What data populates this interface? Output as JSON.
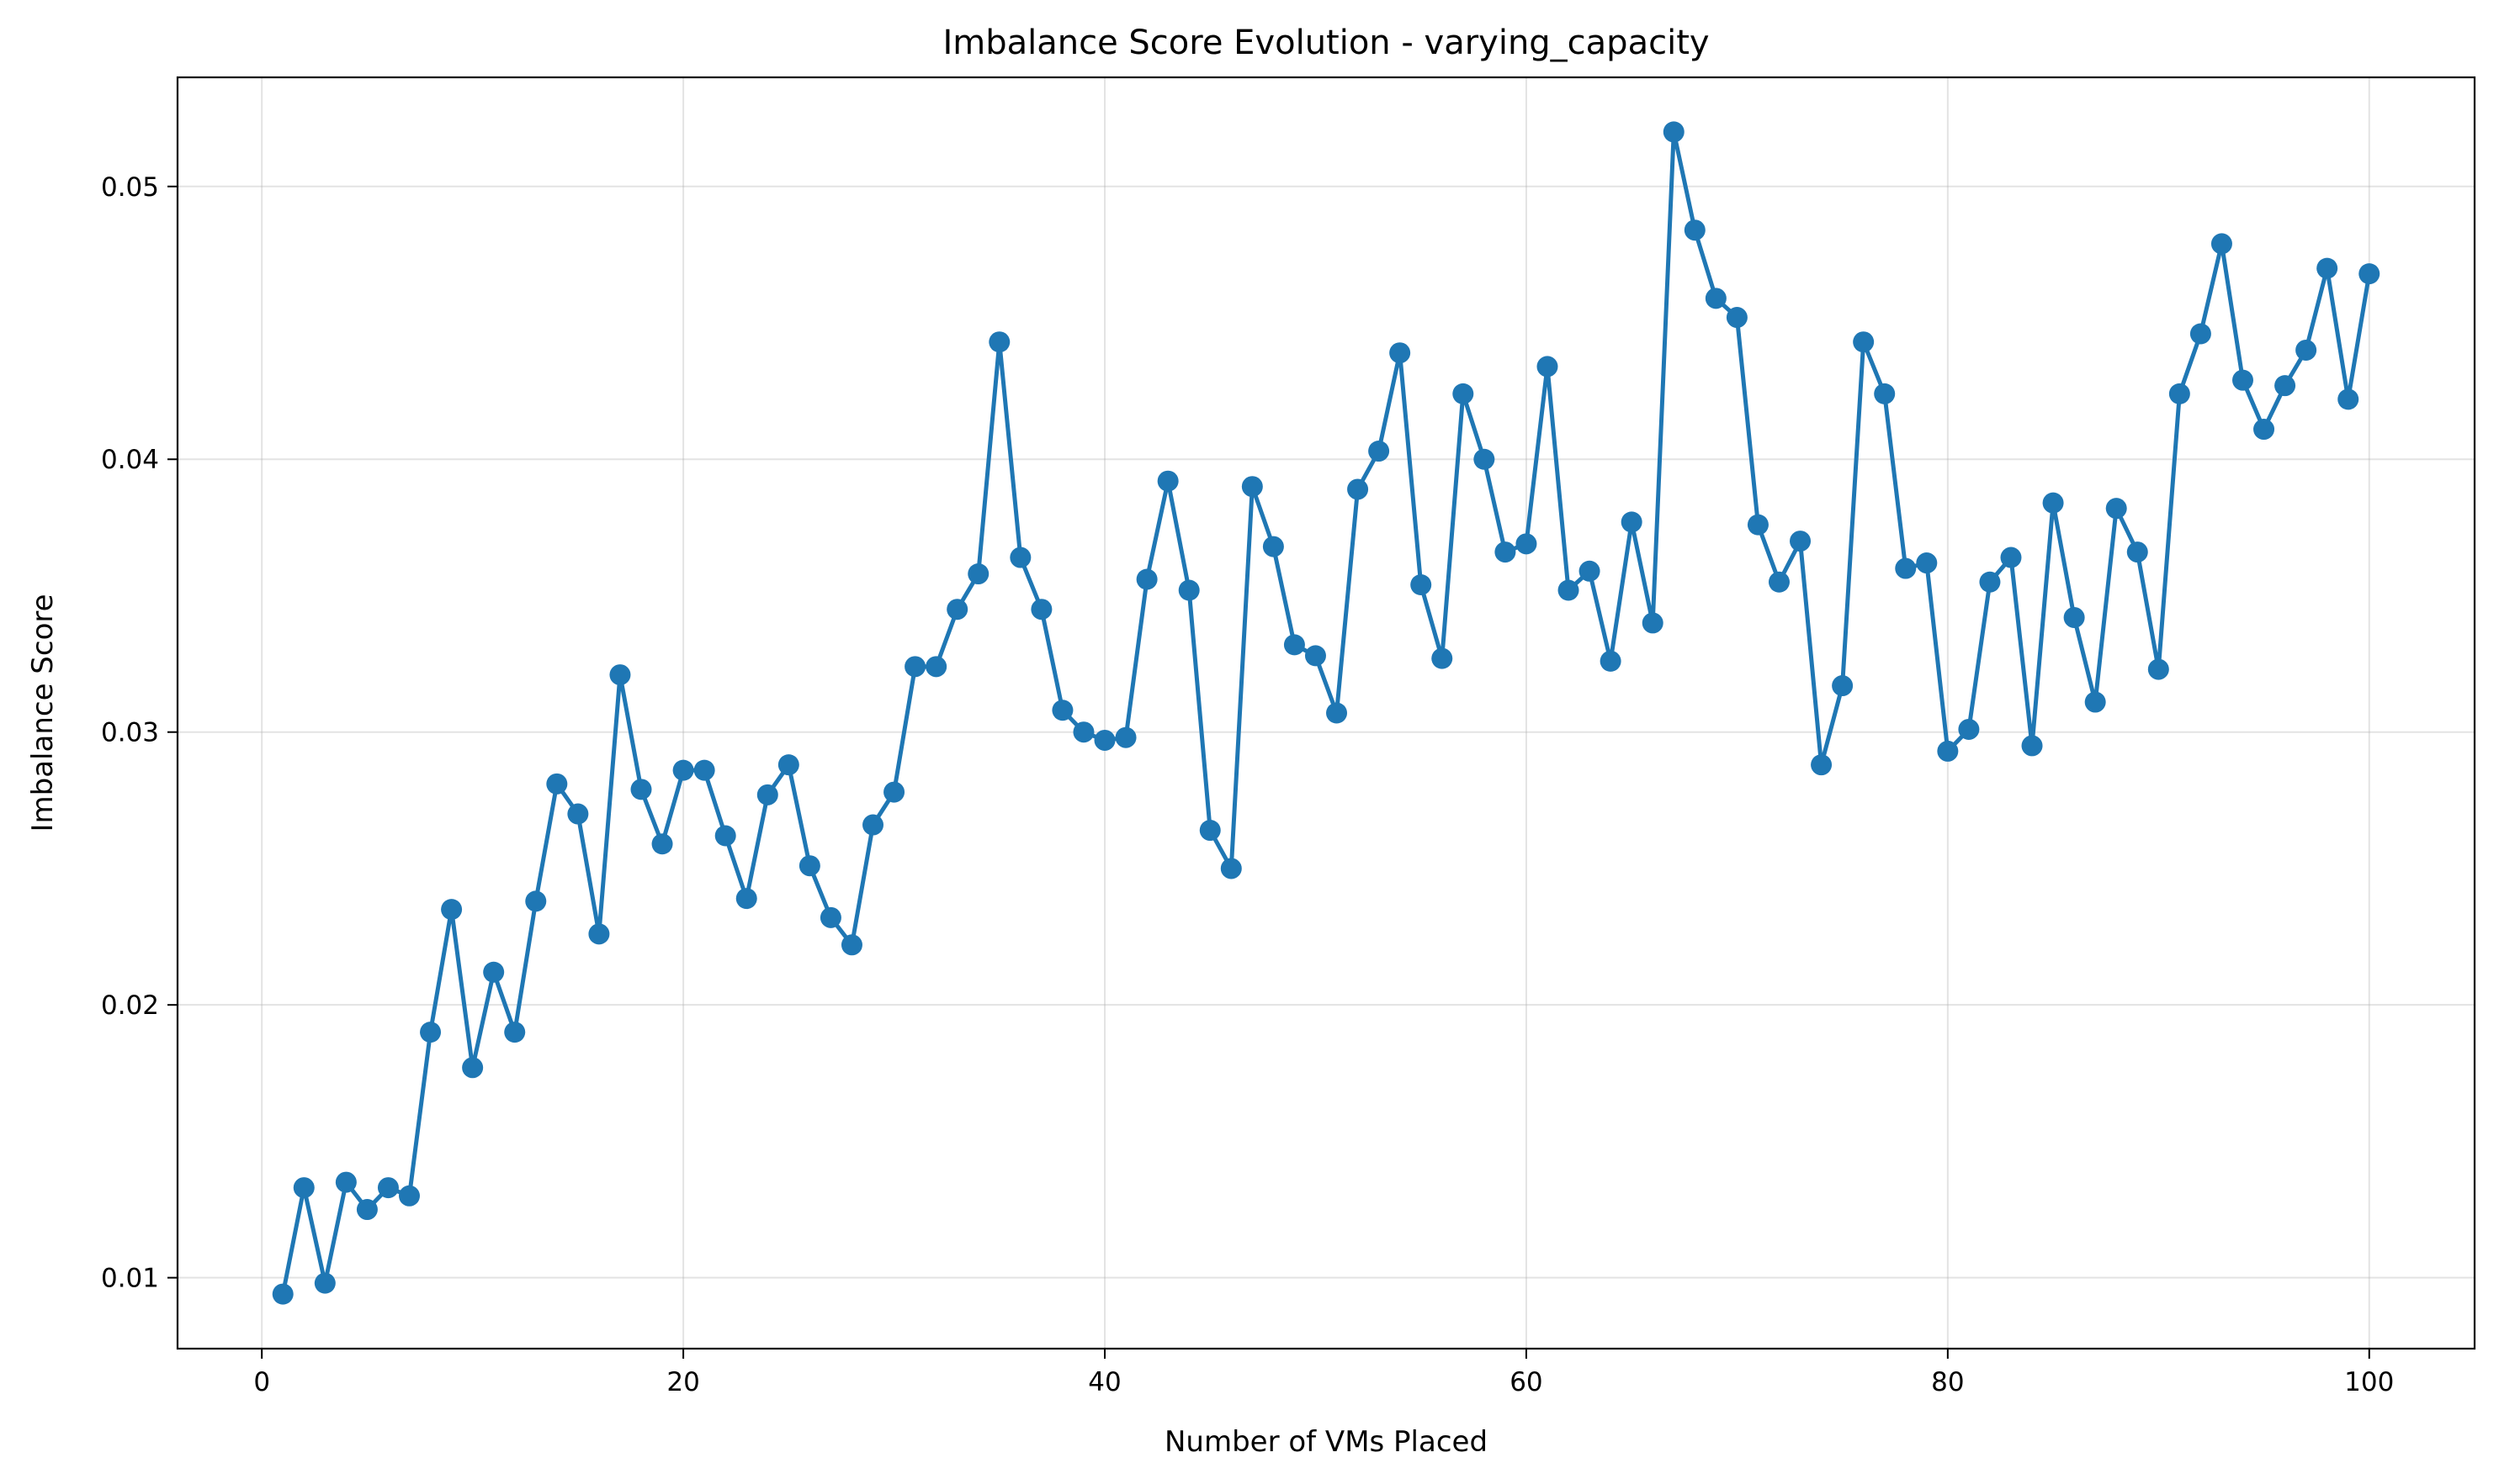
{
  "chart_data": {
    "type": "line",
    "title": "Imbalance Score Evolution - varying_capacity",
    "xlabel": "Number of VMs Placed",
    "ylabel": "Imbalance Score",
    "xlim": [
      -4,
      105
    ],
    "ylim": [
      0.0074,
      0.054
    ],
    "xticks": [
      0,
      20,
      40,
      60,
      80,
      100
    ],
    "xtick_labels": [
      "0",
      "20",
      "40",
      "60",
      "80",
      "100"
    ],
    "yticks": [
      0.01,
      0.02,
      0.03,
      0.04,
      0.05
    ],
    "ytick_labels": [
      "0.01",
      "0.02",
      "0.03",
      "0.04",
      "0.05"
    ],
    "grid": true,
    "legend": "none",
    "color": "#1f77b4",
    "marker": "circle",
    "x": [
      1,
      2,
      3,
      4,
      5,
      6,
      7,
      8,
      9,
      10,
      11,
      12,
      13,
      14,
      15,
      16,
      17,
      18,
      19,
      20,
      21,
      22,
      23,
      24,
      25,
      26,
      27,
      28,
      29,
      30,
      31,
      32,
      33,
      34,
      35,
      36,
      37,
      38,
      39,
      40,
      41,
      42,
      43,
      44,
      45,
      46,
      47,
      48,
      49,
      50,
      51,
      52,
      53,
      54,
      55,
      56,
      57,
      58,
      59,
      60,
      61,
      62,
      63,
      64,
      65,
      66,
      67,
      68,
      69,
      70,
      71,
      72,
      73,
      74,
      75,
      76,
      77,
      78,
      79,
      80,
      81,
      82,
      83,
      84,
      85,
      86,
      87,
      88,
      89,
      90,
      91,
      92,
      93,
      94,
      95,
      96,
      97,
      98,
      99,
      100
    ],
    "y": [
      0.0094,
      0.0133,
      0.0098,
      0.0135,
      0.0125,
      0.0133,
      0.013,
      0.019,
      0.0235,
      0.0177,
      0.0212,
      0.019,
      0.0238,
      0.0281,
      0.027,
      0.0226,
      0.0321,
      0.0279,
      0.0259,
      0.0286,
      0.0286,
      0.0262,
      0.0239,
      0.0277,
      0.0288,
      0.0251,
      0.0232,
      0.0222,
      0.0266,
      0.0278,
      0.0324,
      0.0324,
      0.0345,
      0.0358,
      0.0443,
      0.0364,
      0.0345,
      0.0308,
      0.03,
      0.0297,
      0.0298,
      0.0356,
      0.0392,
      0.0352,
      0.0264,
      0.025,
      0.039,
      0.0368,
      0.0332,
      0.0328,
      0.0307,
      0.0389,
      0.0403,
      0.0439,
      0.0354,
      0.0327,
      0.0424,
      0.04,
      0.0366,
      0.0369,
      0.0434,
      0.0352,
      0.0359,
      0.0326,
      0.0377,
      0.034,
      0.052,
      0.0484,
      0.0459,
      0.0452,
      0.0376,
      0.0355,
      0.037,
      0.0288,
      0.0317,
      0.0443,
      0.0424,
      0.036,
      0.0362,
      0.0293,
      0.0301,
      0.0355,
      0.0364,
      0.0295,
      0.0384,
      0.0342,
      0.0311,
      0.0382,
      0.0366,
      0.0323,
      0.0424,
      0.0446,
      0.0479,
      0.0429,
      0.0411,
      0.0427,
      0.044,
      0.047,
      0.0422,
      0.0468
    ]
  }
}
